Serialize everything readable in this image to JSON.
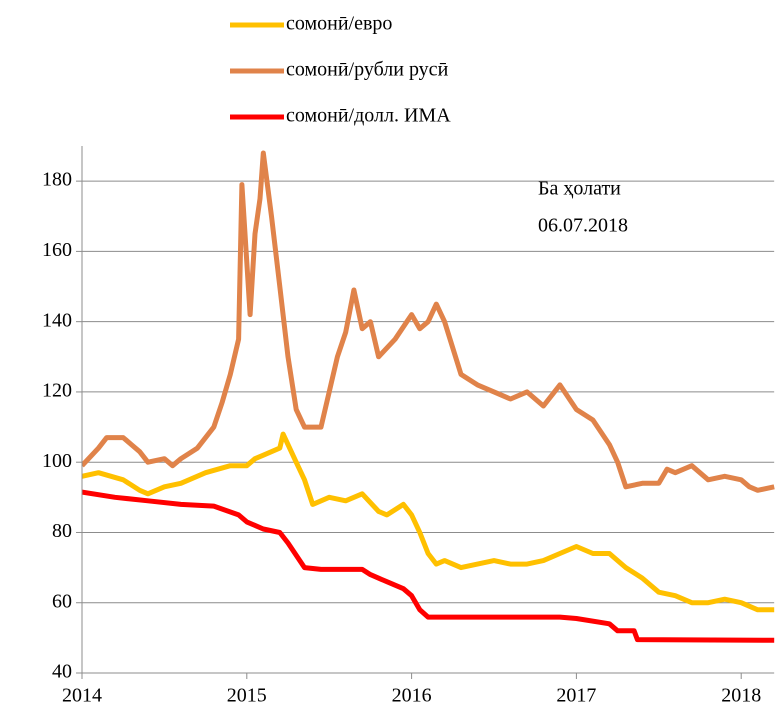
{
  "chart_data": {
    "type": "line",
    "annotations": [
      "Ба ҳолати",
      "06.07.2018"
    ],
    "xlim": [
      2014,
      2018.2
    ],
    "xticks": [
      2014,
      2015,
      2016,
      2017,
      2018
    ],
    "ylim": [
      40,
      190
    ],
    "yticks": [
      40,
      60,
      80,
      100,
      120,
      140,
      160,
      180
    ],
    "grid": true,
    "series": [
      {
        "name": "сомонӣ/евро",
        "color": "#ffc000",
        "x": [
          2014.0,
          2014.1,
          2014.25,
          2014.35,
          2014.4,
          2014.5,
          2014.6,
          2014.75,
          2014.9,
          2015.0,
          2015.05,
          2015.1,
          2015.2,
          2015.22,
          2015.3,
          2015.35,
          2015.4,
          2015.5,
          2015.6,
          2015.7,
          2015.8,
          2015.85,
          2015.95,
          2016.0,
          2016.05,
          2016.1,
          2016.15,
          2016.2,
          2016.3,
          2016.4,
          2016.5,
          2016.6,
          2016.7,
          2016.8,
          2016.9,
          2017.0,
          2017.1,
          2017.2,
          2017.3,
          2017.4,
          2017.5,
          2017.6,
          2017.7,
          2017.8,
          2017.9,
          2018.0,
          2018.1,
          2018.2
        ],
        "values": [
          96,
          97,
          95,
          92,
          91,
          93,
          94,
          97,
          99,
          99,
          101,
          102,
          104,
          108,
          100,
          95,
          88,
          90,
          89,
          91,
          86,
          85,
          88,
          85,
          80,
          74,
          71,
          72,
          70,
          71,
          72,
          71,
          71,
          72,
          74,
          76,
          74,
          74,
          70,
          67,
          63,
          62,
          60,
          60,
          61,
          60,
          58,
          58
        ]
      },
      {
        "name": "сомонӣ/рубли русӣ",
        "color": "#e0834a",
        "x": [
          2014.0,
          2014.1,
          2014.15,
          2014.25,
          2014.3,
          2014.35,
          2014.4,
          2014.5,
          2014.55,
          2014.6,
          2014.7,
          2014.8,
          2014.85,
          2014.9,
          2014.95,
          2014.97,
          2015.02,
          2015.05,
          2015.08,
          2015.1,
          2015.15,
          2015.2,
          2015.25,
          2015.3,
          2015.35,
          2015.45,
          2015.5,
          2015.55,
          2015.6,
          2015.65,
          2015.7,
          2015.75,
          2015.8,
          2015.9,
          2016.0,
          2016.05,
          2016.1,
          2016.15,
          2016.2,
          2016.3,
          2016.4,
          2016.5,
          2016.6,
          2016.7,
          2016.8,
          2016.9,
          2017.0,
          2017.1,
          2017.2,
          2017.25,
          2017.3,
          2017.4,
          2017.5,
          2017.55,
          2017.6,
          2017.7,
          2017.8,
          2017.9,
          2018.0,
          2018.05,
          2018.1,
          2018.2
        ],
        "values": [
          99,
          104,
          107,
          107,
          105,
          103,
          100,
          101,
          99,
          101,
          104,
          110,
          117,
          125,
          135,
          179,
          142,
          165,
          175,
          188,
          170,
          150,
          130,
          115,
          110,
          110,
          120,
          130,
          137,
          149,
          138,
          140,
          130,
          135,
          142,
          138,
          140,
          145,
          140,
          125,
          122,
          120,
          118,
          120,
          116,
          122,
          115,
          112,
          105,
          100,
          93,
          94,
          94,
          98,
          97,
          99,
          95,
          96,
          95,
          93,
          92,
          93
        ]
      },
      {
        "name": "сомонӣ/долл. ИМА",
        "color": "#ff0000",
        "x": [
          2014.0,
          2014.2,
          2014.4,
          2014.6,
          2014.8,
          2014.95,
          2015.0,
          2015.1,
          2015.2,
          2015.25,
          2015.35,
          2015.45,
          2015.7,
          2015.75,
          2015.85,
          2015.95,
          2016.0,
          2016.05,
          2016.1,
          2016.5,
          2016.9,
          2017.0,
          2017.2,
          2017.25,
          2017.35,
          2017.37,
          2018.2
        ],
        "values": [
          91.5,
          90,
          89,
          88,
          87.5,
          85,
          83,
          81,
          80,
          77,
          70,
          69.5,
          69.5,
          68,
          66,
          64,
          62,
          58,
          55.9,
          55.9,
          55.9,
          55.5,
          54,
          52,
          52,
          49.5,
          49.3
        ]
      }
    ]
  }
}
